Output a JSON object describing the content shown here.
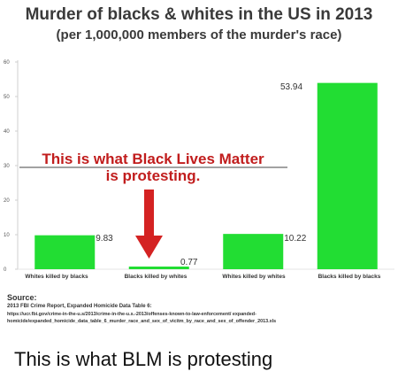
{
  "chart_data": {
    "type": "bar",
    "title": "Murder of blacks & whites in the US in 2013",
    "subtitle": "(per 1,000,000 members of the murder's race)",
    "categories": [
      "Whites killed by blacks",
      "Blacks killed by whites",
      "Whites killed by whites",
      "Blacks killed by blacks"
    ],
    "values": [
      9.83,
      0.77,
      10.22,
      53.94
    ],
    "data_labels": [
      "9.83",
      "0.77",
      "10.22",
      "53.94"
    ],
    "ylim": [
      0,
      60
    ],
    "y_ticks": [
      "0",
      "10",
      "20",
      "30",
      "40",
      "50",
      "60"
    ],
    "xlabel": "",
    "ylabel": "",
    "grid": false,
    "bar_color": "#22dd33",
    "annotation_line1": "This is what Black Lives Matter",
    "annotation_line2": "is protesting.",
    "annotation_color": "#c11d1d",
    "arrow_color": "#d42222"
  },
  "source": {
    "label": "Source:",
    "line1": "2013 FBI Crime Report, Expanded Homicide Data Table 6:",
    "url": "https://ucr.fbi.gov/crime-in-the-u.s/2013/crime-in-the-u.s.-2013/offenses-known-to-law-enforcement/ expanded-homicide/expanded_homicide_data_table_6_murder_race_and_sex_of_vicitm_by_race_and_sex_of_offender_2013.xls"
  },
  "caption": "This is what BLM is protesting"
}
